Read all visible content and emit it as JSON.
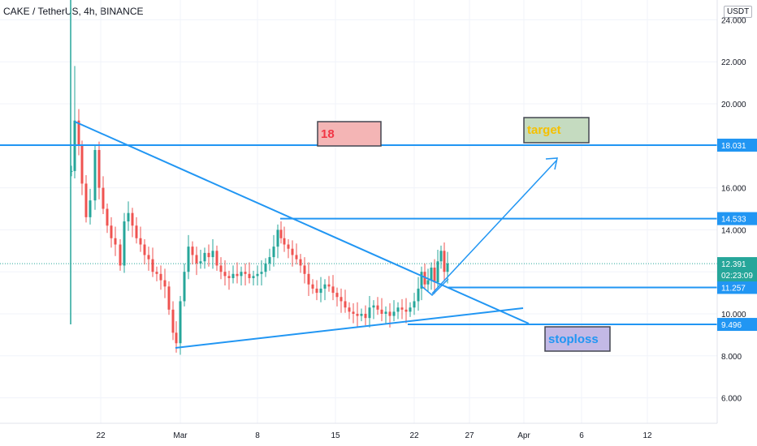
{
  "title": "CAKE / TetherUS, 4h, BINANCE",
  "unit_label": "USDT",
  "chart_data": {
    "type": "candlestick",
    "y_ticks": [
      "24.000",
      "22.000",
      "20.000",
      "18.000",
      "16.000",
      "14.000",
      "12.000",
      "10.000",
      "8.000",
      "6.000"
    ],
    "y_tick_values": [
      24,
      22,
      20,
      18,
      16,
      14,
      12,
      10,
      8,
      6
    ],
    "x_ticks": [
      "22",
      "Mar",
      "8",
      "15",
      "22",
      "27",
      "Apr",
      "6",
      "12"
    ],
    "price_labels": [
      {
        "label": "18.031",
        "value": 18.031,
        "color": "#2196f3"
      },
      {
        "label": "14.533",
        "value": 14.533,
        "color": "#2196f3"
      },
      {
        "label": "11.257",
        "value": 11.257,
        "color": "#2196f3"
      },
      {
        "label": "9.496",
        "value": 9.496,
        "color": "#2196f3"
      }
    ],
    "current_price": {
      "label": "12.391",
      "value": 12.391,
      "countdown": "02:23:09",
      "color": "#26a69a"
    },
    "annotations": [
      {
        "text": "18",
        "fill": "#f4b5b5",
        "text_color": "#f23645"
      },
      {
        "text": "target",
        "fill": "#c5dbc0",
        "text_color": "#f5c000"
      },
      {
        "text": "stoploss",
        "fill": "#c3b9e6",
        "text_color": "#2196f3"
      }
    ],
    "colors": {
      "up": "#26a69a",
      "down": "#ef5350",
      "line": "#2196f3"
    }
  }
}
